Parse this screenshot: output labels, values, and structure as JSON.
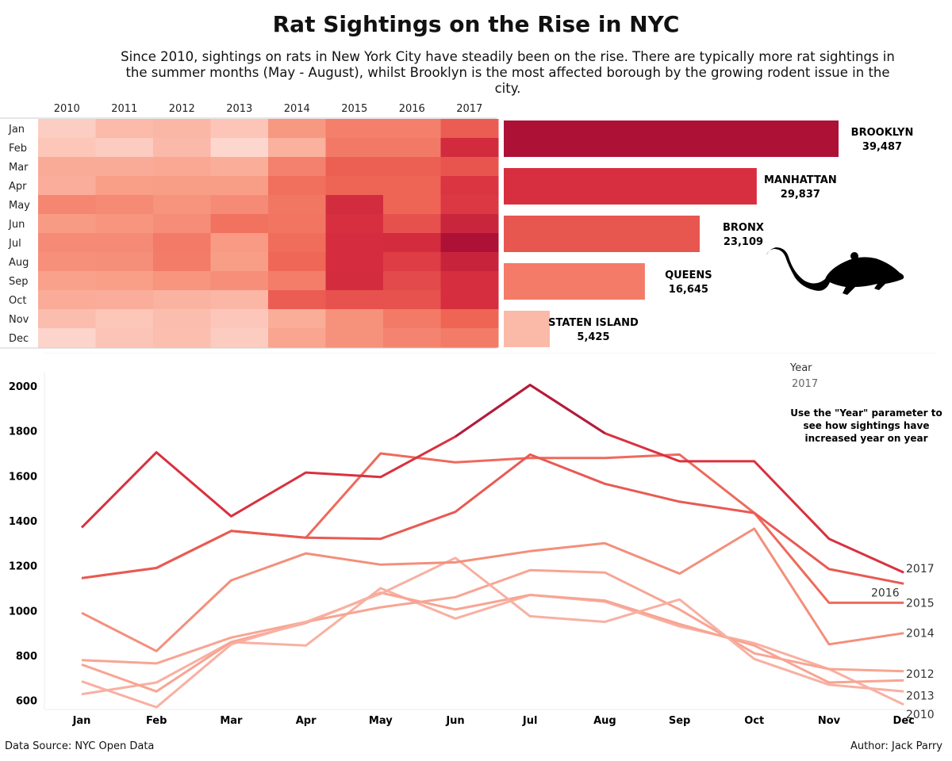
{
  "title": "Rat Sightings on the Rise in NYC",
  "subtitle": "Since 2010, sightings on rats in New York City have steadily been on the rise. There are typically more rat sightings in the summer months (May - August), whilst Brooklyn is the most affected borough by the growing rodent issue in the city.",
  "footer": {
    "source": "Data Source: NYC Open Data",
    "author": "Author: Jack Parry"
  },
  "colors": {
    "min": "#fdd6cd",
    "low": "#f9a18a",
    "mid": "#f06a58",
    "high": "#d93040",
    "max": "#ad1236"
  },
  "icons": {
    "rat": "rat-silhouette-icon"
  },
  "chart_data": [
    {
      "type": "heatmap",
      "title": "",
      "columns": [
        "2010",
        "2011",
        "2012",
        "2013",
        "2014",
        "2015",
        "2016",
        "2017"
      ],
      "rows": [
        "Jan",
        "Feb",
        "Mar",
        "Apr",
        "May",
        "Jun",
        "Jul",
        "Aug",
        "Sep",
        "Oct",
        "Nov",
        "Dec"
      ],
      "values_source": "same data as the line chart (sightings per month per year)"
    },
    {
      "type": "bar",
      "orientation": "horizontal",
      "categories": [
        "BROOKLYN",
        "MANHATTAN",
        "BRONX",
        "QUEENS",
        "STATEN ISLAND"
      ],
      "values": [
        39487,
        29837,
        23109,
        16645,
        5425
      ],
      "labels": [
        "39,487",
        "29,837",
        "23,109",
        "16,645",
        "5,425"
      ]
    },
    {
      "type": "line",
      "title": "",
      "xlabel": "",
      "ylabel": "",
      "categories": [
        "Jan",
        "Feb",
        "Mar",
        "Apr",
        "May",
        "Jun",
        "Jul",
        "Aug",
        "Sep",
        "Oct",
        "Nov",
        "Dec"
      ],
      "ylim": [
        560,
        2060
      ],
      "yticks": [
        600,
        800,
        1000,
        1200,
        1400,
        1600,
        1800,
        2000
      ],
      "parameter": {
        "label": "Year",
        "value": "2017"
      },
      "annotation": "Use the \"Year\" parameter to see how sightings have increased year on year",
      "series": [
        {
          "name": "2010",
          "values": [
            628,
            680,
            860,
            845,
            1100,
            965,
            1070,
            1040,
            930,
            855,
            740,
            582
          ]
        },
        {
          "name": "2011",
          "values": [
            760,
            640,
            860,
            945,
            1080,
            1005,
            1070,
            1045,
            940,
            845,
            680,
            690
          ]
        },
        {
          "name": "2012",
          "values": [
            780,
            765,
            880,
            950,
            1015,
            1060,
            1180,
            1170,
            1005,
            810,
            740,
            730
          ]
        },
        {
          "name": "2013",
          "values": [
            685,
            570,
            850,
            950,
            1075,
            1235,
            975,
            950,
            1050,
            785,
            670,
            640
          ]
        },
        {
          "name": "2014",
          "values": [
            990,
            820,
            1135,
            1255,
            1205,
            1215,
            1265,
            1300,
            1165,
            1365,
            850,
            900
          ]
        },
        {
          "name": "2015",
          "values": [
            1145,
            1190,
            1355,
            1325,
            1700,
            1660,
            1680,
            1680,
            1695,
            1435,
            1035,
            1035
          ]
        },
        {
          "name": "2016",
          "values": [
            1145,
            1190,
            1355,
            1325,
            1320,
            1440,
            1695,
            1565,
            1485,
            1435,
            1185,
            1120
          ]
        },
        {
          "name": "2017",
          "values": [
            1370,
            1705,
            1420,
            1615,
            1595,
            1775,
            2005,
            1790,
            1665,
            1665,
            1320,
            1170
          ]
        }
      ]
    }
  ]
}
